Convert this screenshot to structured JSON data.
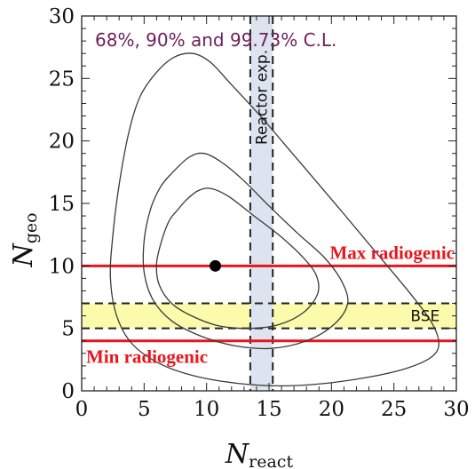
{
  "chart_data": {
    "type": "line",
    "title": "68%, 90% and 99.73% C.L.",
    "xlabel": "N",
    "xlabel_sub": "react",
    "ylabel": "N",
    "ylabel_sub": "geo",
    "xlim": [
      0,
      30
    ],
    "ylim": [
      0,
      30
    ],
    "x_ticks": [
      "0",
      "5",
      "10",
      "15",
      "20",
      "25",
      "30"
    ],
    "y_ticks": [
      "0",
      "5",
      "10",
      "15",
      "20",
      "25",
      "30"
    ],
    "grid": false,
    "best_fit": {
      "x": 10.7,
      "y": 10
    },
    "contours": [
      {
        "level": "68%",
        "points": [
          [
            7.7,
            14.5
          ],
          [
            7.0,
            13.6
          ],
          [
            6.4,
            12.0
          ],
          [
            6.0,
            10.2
          ],
          [
            6.2,
            8.5
          ],
          [
            7.2,
            7.0
          ],
          [
            8.8,
            6.0
          ],
          [
            11.0,
            5.2
          ],
          [
            13.5,
            5.0
          ],
          [
            15.8,
            5.3
          ],
          [
            17.8,
            6.3
          ],
          [
            18.9,
            7.8
          ],
          [
            18.8,
            9.2
          ],
          [
            17.8,
            10.6
          ],
          [
            16.0,
            12.3
          ],
          [
            13.8,
            14.0
          ],
          [
            11.7,
            15.6
          ],
          [
            10.3,
            16.2
          ],
          [
            9.3,
            16.0
          ],
          [
            8.4,
            15.3
          ]
        ]
      },
      {
        "level": "90%",
        "points": [
          [
            7.2,
            17.4
          ],
          [
            6.3,
            16.3
          ],
          [
            5.5,
            14.5
          ],
          [
            5.0,
            12.0
          ],
          [
            5.0,
            9.5
          ],
          [
            5.7,
            7.3
          ],
          [
            7.2,
            5.6
          ],
          [
            9.5,
            4.4
          ],
          [
            12.3,
            3.6
          ],
          [
            15.2,
            3.4
          ],
          [
            18.0,
            4.0
          ],
          [
            20.2,
            5.3
          ],
          [
            21.3,
            7.0
          ],
          [
            20.8,
            8.8
          ],
          [
            19.4,
            10.7
          ],
          [
            17.3,
            12.6
          ],
          [
            15.0,
            14.8
          ],
          [
            13.0,
            16.8
          ],
          [
            11.2,
            18.3
          ],
          [
            9.8,
            19.0
          ],
          [
            8.6,
            18.7
          ]
        ]
      },
      {
        "level": "99.73%",
        "points": [
          [
            6.0,
            25.5
          ],
          [
            4.7,
            23.6
          ],
          [
            3.8,
            20.8
          ],
          [
            3.0,
            16.5
          ],
          [
            2.5,
            12.5
          ],
          [
            2.3,
            9.0
          ],
          [
            2.8,
            6.0
          ],
          [
            4.0,
            3.8
          ],
          [
            6.2,
            2.2
          ],
          [
            9.0,
            1.2
          ],
          [
            12.5,
            0.6
          ],
          [
            16.0,
            0.4
          ],
          [
            19.5,
            0.6
          ],
          [
            23.0,
            1.1
          ],
          [
            26.0,
            1.8
          ],
          [
            28.0,
            2.7
          ],
          [
            28.6,
            3.8
          ],
          [
            28.0,
            5.5
          ],
          [
            26.3,
            7.8
          ],
          [
            23.8,
            10.8
          ],
          [
            20.7,
            14.5
          ],
          [
            17.3,
            18.5
          ],
          [
            14.3,
            22.0
          ],
          [
            12.0,
            24.5
          ],
          [
            10.3,
            26.3
          ],
          [
            8.9,
            27.0
          ],
          [
            7.4,
            26.7
          ]
        ]
      }
    ],
    "horizontal_lines": [
      {
        "name": "Max radiogenic",
        "y": 10,
        "color": "#e8151b"
      },
      {
        "name": "Min radiogenic",
        "y": 4,
        "color": "#e8151b"
      }
    ],
    "bands": [
      {
        "name": "BSE",
        "axis": "y",
        "range": [
          5,
          7
        ],
        "color": "#fbfbab"
      },
      {
        "name": "Reactor exp.",
        "axis": "x",
        "range": [
          13.5,
          15.3
        ],
        "color": "#dde3ef"
      }
    ],
    "colors": {
      "title": "#6d1f5b",
      "contour": "#3a3a3a",
      "red": "#e8151b"
    }
  }
}
